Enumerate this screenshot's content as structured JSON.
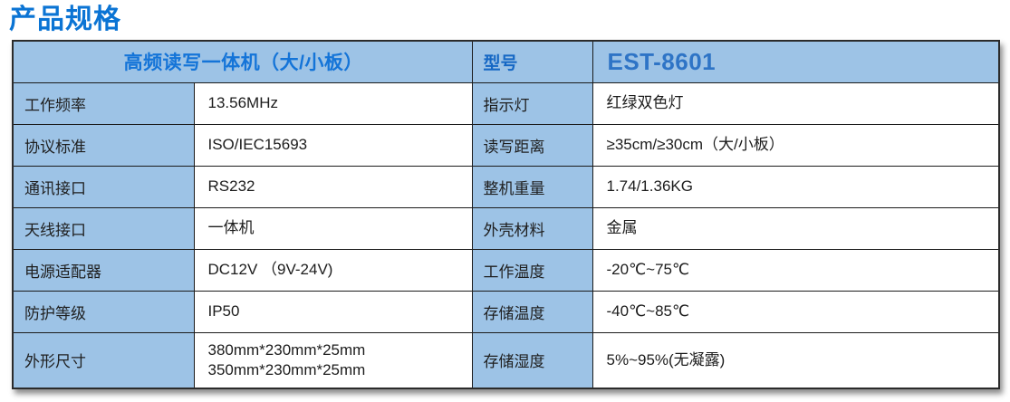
{
  "page": {
    "title": "产品规格"
  },
  "colors": {
    "title_blue": "#0b74d4",
    "header_text_blue": "#1474d8",
    "model_value_blue": "#2e74c6",
    "cell_light_blue": "#9dc3e6",
    "border_dark": "#1b1b1b"
  },
  "table": {
    "header": {
      "product": "高频读写一体机（大/小板）",
      "model_label": "型号",
      "model_value": "EST-8601"
    },
    "rows": [
      {
        "label1": "工作频率",
        "value1": "13.56MHz",
        "label2": "指示灯",
        "value2": "红绿双色灯"
      },
      {
        "label1": "协议标准",
        "value1": "ISO/IEC15693",
        "label2": "读写距离",
        "value2": "≥35cm/≥30cm（大/小板）"
      },
      {
        "label1": "通讯接口",
        "value1": "RS232",
        "label2": "整机重量",
        "value2": "1.74/1.36KG"
      },
      {
        "label1": "天线接口",
        "value1": "一体机",
        "label2": "外壳材料",
        "value2": "金属"
      },
      {
        "label1": "电源适配器",
        "value1": "DC12V （9V-24V)",
        "label2": "工作温度",
        "value2": "-20℃~75℃"
      },
      {
        "label1": "防护等级",
        "value1": "IP50",
        "label2": "存储温度",
        "value2": "-40℃~85℃"
      },
      {
        "label1": "外形尺寸",
        "value1": "380mm*230mm*25mm\n350mm*230mm*25mm",
        "label2": "存储湿度",
        "value2": "5%~95%(无凝露)"
      }
    ]
  }
}
